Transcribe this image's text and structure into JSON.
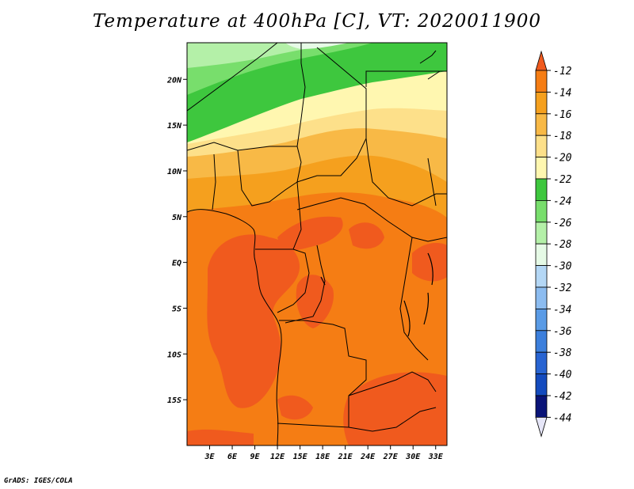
{
  "title": "Temperature at 400hPa [C], VT: 2020011900",
  "credit": "GrADS: IGES/COLA",
  "map": {
    "lon_range": [
      0,
      34.5
    ],
    "lat_range": [
      -20,
      24
    ],
    "x_ticks": [
      "3E",
      "6E",
      "9E",
      "12E",
      "15E",
      "18E",
      "21E",
      "24E",
      "27E",
      "30E",
      "33E"
    ],
    "y_ticks": [
      "20N",
      "15N",
      "10N",
      "5N",
      "EQ",
      "5S",
      "10S",
      "15S"
    ]
  },
  "colorbar": {
    "labels": [
      "-12",
      "-14",
      "-16",
      "-18",
      "-20",
      "-22",
      "-24",
      "-26",
      "-28",
      "-30",
      "-32",
      "-34",
      "-36",
      "-38",
      "-40",
      "-42",
      "-44"
    ],
    "colors": {
      "above_-12": "#f05a1e",
      "-14_-12": "#f57d14",
      "-16_-14": "#f5a01e",
      "-18_-16": "#f8b946",
      "-20_-18": "#fde08a",
      "-22_-20": "#fff7b0",
      "-24_-22": "#3ec73e",
      "-26_-24": "#78de6c",
      "-28_-26": "#b4f0a8",
      "-30_-28": "#e6fae6",
      "-32_-30": "#b4d7f5",
      "-34_-32": "#8cbcf0",
      "-36_-34": "#5a9be6",
      "-38_-36": "#3c7fdc",
      "-40_-38": "#2864d2",
      "-42_-40": "#144bbe",
      "-44_-42": "#0a1478",
      "below_-44": "#e6e6f8"
    }
  }
}
